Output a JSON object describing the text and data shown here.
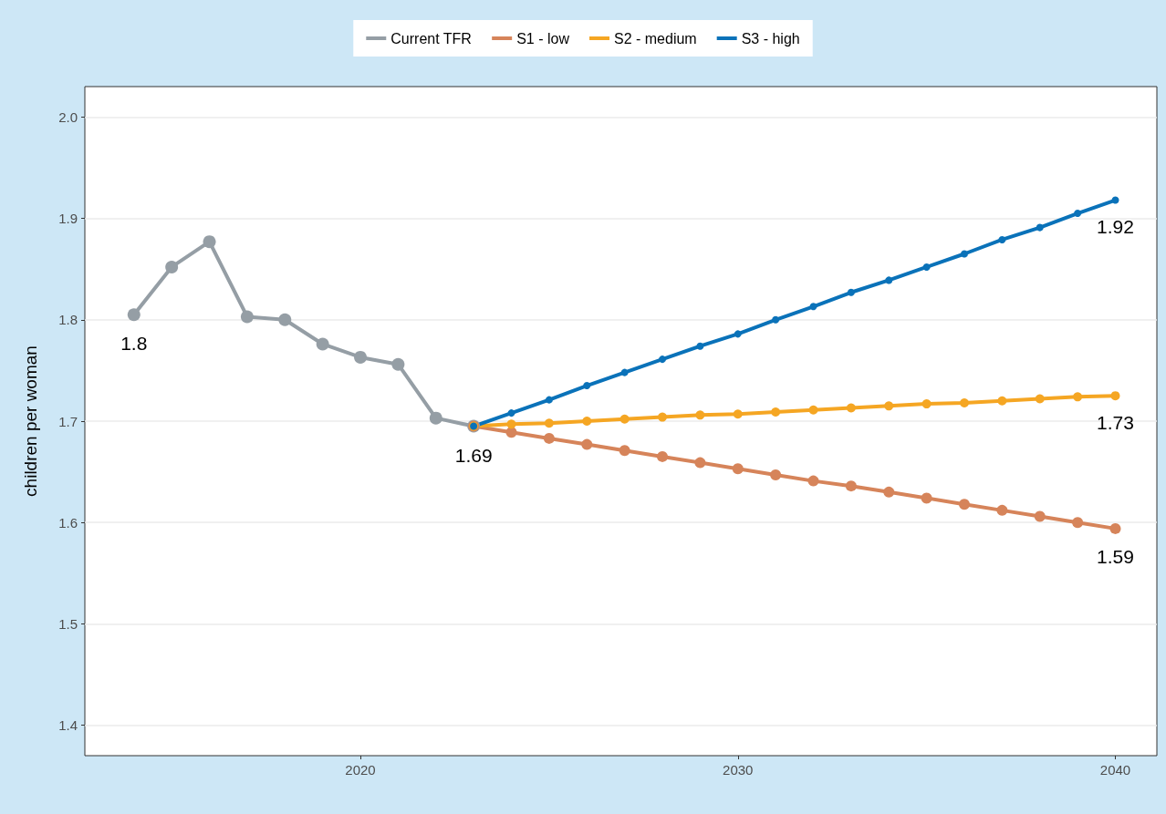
{
  "chart_data": {
    "type": "line",
    "ylabel": "children per woman",
    "xlim": [
      2012.7,
      2041.1
    ],
    "ylim": [
      1.37,
      2.03
    ],
    "xticks": [
      2020,
      2030,
      2040
    ],
    "yticks": [
      1.4,
      1.5,
      1.6,
      1.7,
      1.8,
      1.9,
      {
        "value": 2,
        "label": "2.0"
      }
    ],
    "grid": "y",
    "legend": "top",
    "marker": "circle",
    "line_style": "solid",
    "series": [
      {
        "name": "Current TFR",
        "color": "#959ea5",
        "x": [
          2014,
          2015,
          2016,
          2017,
          2018,
          2019,
          2020,
          2021,
          2022,
          2023
        ],
        "values": [
          1.805,
          1.852,
          1.877,
          1.803,
          1.8,
          1.776,
          1.763,
          1.756,
          1.703,
          1.695
        ],
        "value_labels": [
          "1.8",
          null,
          null,
          null,
          null,
          null,
          null,
          null,
          null,
          "1.69"
        ]
      },
      {
        "name": "S1 - low",
        "color": "#d6845a",
        "x": [
          2023,
          2024,
          2025,
          2026,
          2027,
          2028,
          2029,
          2030,
          2031,
          2032,
          2033,
          2034,
          2035,
          2036,
          2037,
          2038,
          2039,
          2040
        ],
        "values": [
          1.695,
          1.689,
          1.683,
          1.677,
          1.671,
          1.665,
          1.659,
          1.653,
          1.647,
          1.641,
          1.636,
          1.63,
          1.624,
          1.618,
          1.612,
          1.606,
          1.6,
          1.594
        ],
        "value_labels": [
          null,
          null,
          null,
          null,
          null,
          null,
          null,
          null,
          null,
          null,
          null,
          null,
          null,
          null,
          null,
          null,
          null,
          "1.59"
        ]
      },
      {
        "name": "S2 - medium",
        "color": "#f5a623",
        "x": [
          2023,
          2024,
          2025,
          2026,
          2027,
          2028,
          2029,
          2030,
          2031,
          2032,
          2033,
          2034,
          2035,
          2036,
          2037,
          2038,
          2039,
          2040
        ],
        "values": [
          1.695,
          1.697,
          1.698,
          1.7,
          1.702,
          1.704,
          1.706,
          1.707,
          1.709,
          1.711,
          1.713,
          1.715,
          1.717,
          1.718,
          1.72,
          1.722,
          1.724,
          1.725
        ],
        "value_labels": [
          null,
          null,
          null,
          null,
          null,
          null,
          null,
          null,
          null,
          null,
          null,
          null,
          null,
          null,
          null,
          null,
          null,
          "1.73"
        ]
      },
      {
        "name": "S3 - high",
        "color": "#0a72b9",
        "x": [
          2023,
          2024,
          2025,
          2026,
          2027,
          2028,
          2029,
          2030,
          2031,
          2032,
          2033,
          2034,
          2035,
          2036,
          2037,
          2038,
          2039,
          2040
        ],
        "values": [
          1.695,
          1.708,
          1.721,
          1.735,
          1.748,
          1.761,
          1.774,
          1.786,
          1.8,
          1.813,
          1.827,
          1.839,
          1.852,
          1.865,
          1.879,
          1.891,
          1.905,
          1.918
        ],
        "value_labels": [
          null,
          null,
          null,
          null,
          null,
          null,
          null,
          null,
          null,
          null,
          null,
          null,
          null,
          null,
          null,
          null,
          null,
          "1.92"
        ]
      }
    ]
  }
}
